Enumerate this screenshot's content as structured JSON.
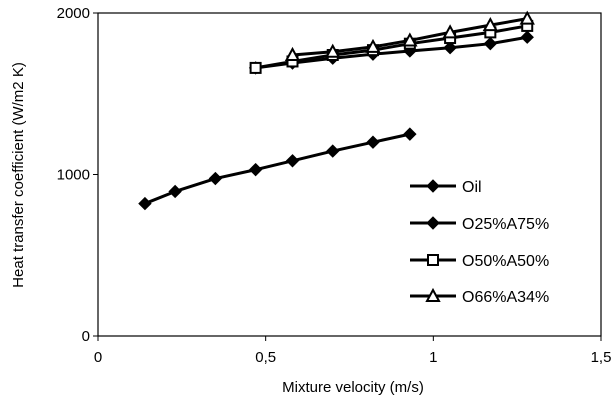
{
  "chart_data": {
    "type": "line",
    "title": "",
    "xlabel": "Mixture velocity (m/s)",
    "ylabel": "Heat transfer coefficient (W/m2 K)",
    "xlim": [
      0,
      1.5
    ],
    "ylim": [
      0,
      2000
    ],
    "x_ticks": [
      {
        "value": 0,
        "label": "0"
      },
      {
        "value": 0.5,
        "label": "0,5"
      },
      {
        "value": 1,
        "label": "1"
      },
      {
        "value": 1.5,
        "label": "1,5"
      }
    ],
    "y_ticks": [
      {
        "value": 0,
        "label": "0"
      },
      {
        "value": 1000,
        "label": "1000"
      },
      {
        "value": 2000,
        "label": "2000"
      }
    ],
    "grid": false,
    "legend_position": "right",
    "series": [
      {
        "name": "Oil",
        "marker": "diamond",
        "color": "#000000",
        "x": [
          0.14,
          0.23,
          0.35,
          0.47,
          0.58,
          0.7,
          0.82,
          0.93
        ],
        "y": [
          820,
          895,
          975,
          1030,
          1085,
          1145,
          1200,
          1250
        ]
      },
      {
        "name": "O25%A75%",
        "marker": "diamond",
        "color": "#000000",
        "x": [
          0.47,
          0.58,
          0.7,
          0.82,
          0.93,
          1.05,
          1.17,
          1.28
        ],
        "y": [
          1660,
          1690,
          1720,
          1745,
          1765,
          1785,
          1810,
          1850
        ]
      },
      {
        "name": "O50%A50%",
        "marker": "square",
        "color": "#000000",
        "x": [
          0.47,
          0.58,
          0.7,
          0.82,
          0.93,
          1.05,
          1.17,
          1.28
        ],
        "y": [
          1660,
          1700,
          1740,
          1770,
          1810,
          1845,
          1880,
          1920
        ]
      },
      {
        "name": "O66%A34%",
        "marker": "triangle",
        "color": "#000000",
        "x": [
          0.58,
          0.7,
          0.82,
          0.93,
          1.05,
          1.17,
          1.28
        ],
        "y": [
          1740,
          1760,
          1790,
          1830,
          1880,
          1925,
          1965
        ]
      }
    ]
  }
}
